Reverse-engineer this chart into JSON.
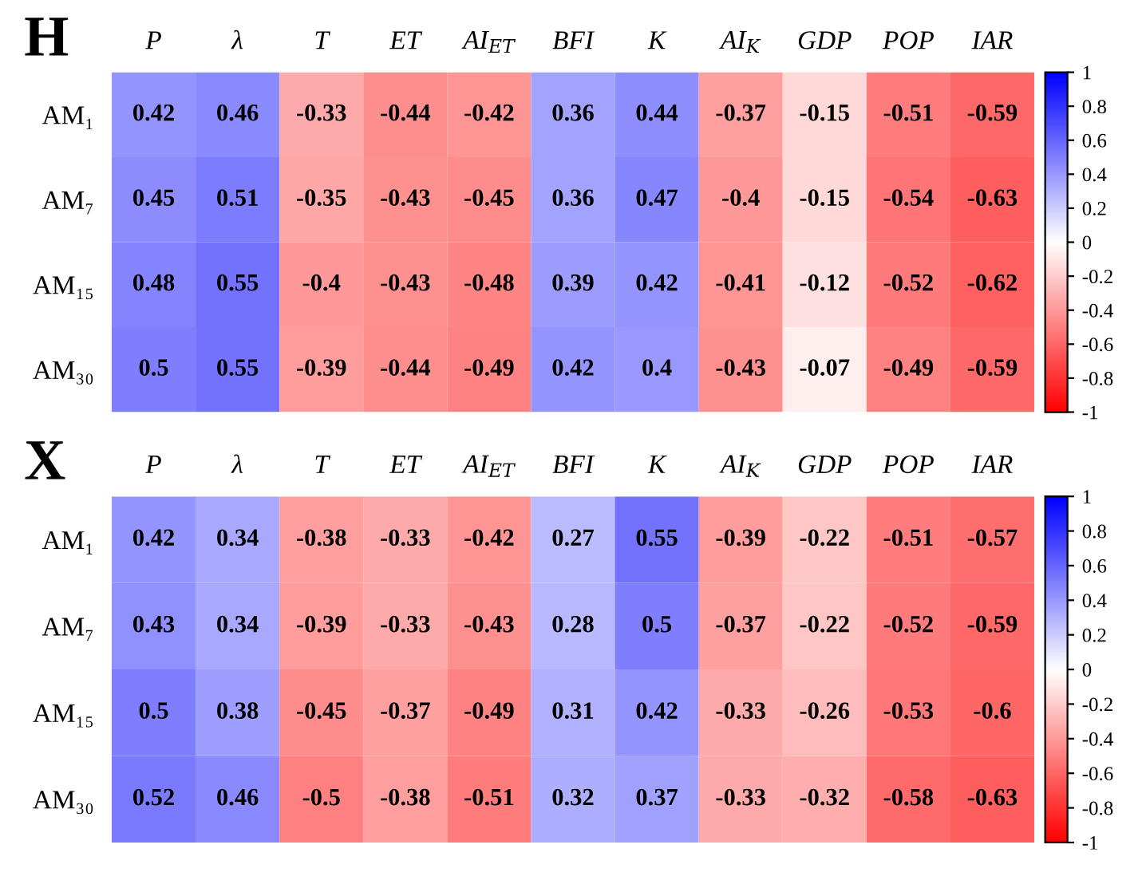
{
  "chart_data": [
    {
      "type": "heatmap",
      "title": "H",
      "categories": [
        "P",
        "λ",
        "T",
        "ET",
        "AI$_{ET}$",
        "BFI",
        "K",
        "AI$_{K}$",
        "GDP",
        "POP",
        "IAR"
      ],
      "y_categories": [
        "AM₁",
        "AM₇",
        "AM₁₅",
        "AM₃₀"
      ],
      "cells": [
        [
          0.42,
          0.46,
          -0.33,
          -0.44,
          -0.42,
          0.36,
          0.44,
          -0.37,
          -0.15,
          -0.51,
          -0.59
        ],
        [
          0.45,
          0.51,
          -0.35,
          -0.43,
          -0.45,
          0.36,
          0.47,
          -0.4,
          -0.15,
          -0.54,
          -0.63
        ],
        [
          0.48,
          0.55,
          -0.4,
          -0.43,
          -0.48,
          0.39,
          0.42,
          -0.41,
          -0.12,
          -0.52,
          -0.62
        ],
        [
          0.5,
          0.55,
          -0.39,
          -0.44,
          -0.49,
          0.42,
          0.4,
          -0.43,
          -0.07,
          -0.49,
          -0.59
        ]
      ],
      "data_labels": true,
      "colors": [
        "#ff0000",
        "#ffffff",
        "#0000ff"
      ],
      "clim": [
        -1,
        1
      ],
      "cticks": [
        -1,
        -0.8,
        -0.6,
        -0.4,
        -0.2,
        0,
        0.2,
        0.4,
        0.6,
        0.8,
        1
      ]
    },
    {
      "type": "heatmap",
      "title": "X",
      "categories": [
        "P",
        "λ",
        "T",
        "ET",
        "AI$_{ET}$",
        "BFI",
        "K",
        "AI$_{K}$",
        "GDP",
        "POP",
        "IAR"
      ],
      "y_categories": [
        "AM₁",
        "AM₇",
        "AM₁₅",
        "AM₃₀"
      ],
      "cells": [
        [
          0.42,
          0.34,
          -0.38,
          -0.33,
          -0.42,
          0.27,
          0.55,
          -0.39,
          -0.22,
          -0.51,
          -0.57
        ],
        [
          0.43,
          0.34,
          -0.39,
          -0.33,
          -0.43,
          0.28,
          0.5,
          -0.37,
          -0.22,
          -0.52,
          -0.59
        ],
        [
          0.5,
          0.38,
          -0.45,
          -0.37,
          -0.49,
          0.31,
          0.42,
          -0.33,
          -0.26,
          -0.53,
          -0.6
        ],
        [
          0.52,
          0.46,
          -0.5,
          -0.38,
          -0.51,
          0.32,
          0.37,
          -0.33,
          -0.32,
          -0.58,
          -0.63
        ]
      ],
      "data_labels": true,
      "colors": [
        "#ff0000",
        "#ffffff",
        "#0000ff"
      ],
      "clim": [
        -1,
        1
      ],
      "cticks": [
        -1,
        -0.8,
        -0.6,
        -0.4,
        -0.2,
        0,
        0.2,
        0.4,
        0.6,
        0.8,
        1
      ]
    }
  ]
}
